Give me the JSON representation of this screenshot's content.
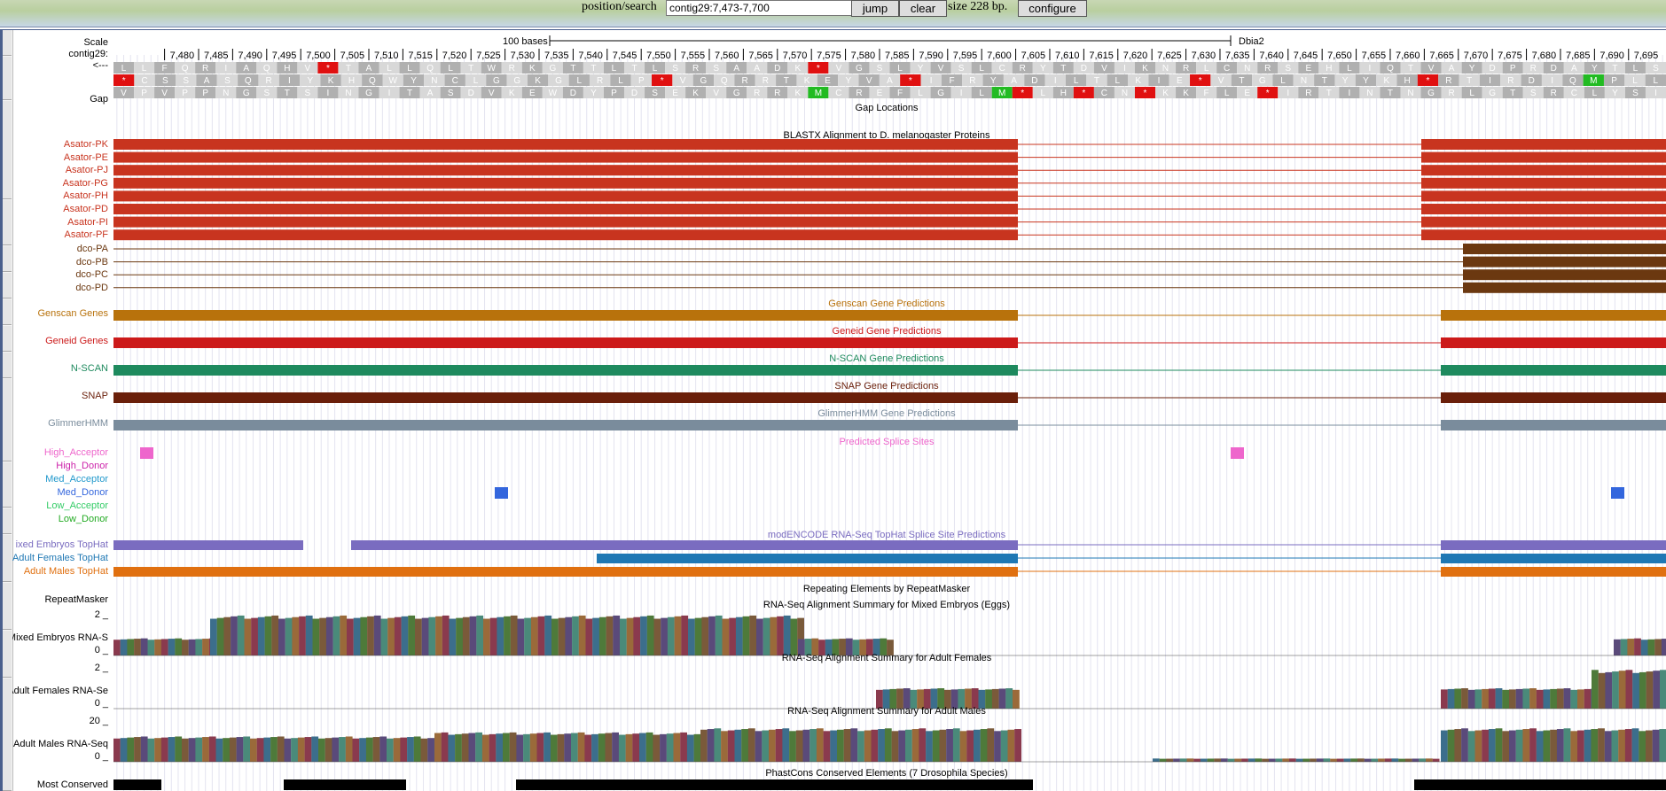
{
  "nav": {
    "position_label": "position/search",
    "position_value": "contig29:7,473-7,700",
    "jump_label": "jump",
    "clear_label": "clear",
    "size_text": "size 228 bp.",
    "configure_label": "configure"
  },
  "ruler": {
    "scale_label": "Scale",
    "chrom_label": "contig29:",
    "strand_label": "<---",
    "scale_bar_text": "100 bases",
    "assembly_label": "Dbia2",
    "range_start": 7473,
    "range_end": 7700,
    "ticks": [
      "7,480",
      "7,485",
      "7,490",
      "7,495",
      "7,500",
      "7,505",
      "7,510",
      "7,515",
      "7,520",
      "7,525",
      "7,530",
      "7,535",
      "7,540",
      "7,545",
      "7,550",
      "7,555",
      "7,560",
      "7,565",
      "7,570",
      "7,575",
      "7,580",
      "7,585",
      "7,590",
      "7,595",
      "7,600",
      "7,605",
      "7,610",
      "7,615",
      "7,620",
      "7,625",
      "7,630",
      "7,635",
      "7,640",
      "7,645",
      "7,650",
      "7,655",
      "7,660",
      "7,665",
      "7,670",
      "7,675",
      "7,680",
      "7,685",
      "7,690",
      "7,695"
    ]
  },
  "aa_frames": [
    "LLFQRIAQHV*TALLQLTWRKGTTLTLSRSAADK*VGSLYVSLCRYTDVIKNRLCNRSEHLIQTVAYDPRDAYTLS",
    "*CSSASQRIYKHQWYNCLGGKGLRLP*VGQRRTKEYVA*IFRYADILTLKIE*VTGLNTYYKH*RTIRDIQMPLL",
    "VPVPPNGSTSINGITASDVKEWDYPDSEKVGRRKMCREFLGILM*LH*CN*KKFLE*IRTINTNGRLGTSRCLYSI"
  ],
  "colors": {
    "asator": "#c8341f",
    "dco": "#6b3810",
    "genscan": "#b8720c",
    "geneid": "#cc1a1a",
    "nscan": "#1e8a5e",
    "snap": "#6a1f0a",
    "glimmer": "#7a8c9c",
    "mixed_tophat": "#7a6cc0",
    "females_tophat": "#1f78b4",
    "males_tophat": "#e07010",
    "stop_codon": "#e01010",
    "start_codon": "#22bb22"
  },
  "gap": {
    "label": "Gap",
    "title": "Gap Locations"
  },
  "blastx": {
    "title": "BLASTX Alignment to D. melanogaster Proteins",
    "items": [
      "Asator-PK",
      "Asator-PE",
      "Asator-PJ",
      "Asator-PG",
      "Asator-PH",
      "Asator-PD",
      "Asator-PI",
      "Asator-PF"
    ]
  },
  "dco": {
    "items": [
      "dco-PA",
      "dco-PB",
      "dco-PC",
      "dco-PD"
    ]
  },
  "predictions": [
    {
      "label": "Genscan Genes",
      "title": "Genscan Gene Predictions",
      "color": "#b8720c"
    },
    {
      "label": "Geneid Genes",
      "title": "Geneid Gene Predictions",
      "color": "#cc1a1a"
    },
    {
      "label": "N-SCAN",
      "title": "N-SCAN Gene Predictions",
      "color": "#1e8a5e"
    },
    {
      "label": "SNAP",
      "title": "SNAP Gene Predictions",
      "color": "#6a1f0a"
    },
    {
      "label": "GlimmerHMM",
      "title": "GlimmerHMM Gene Predictions",
      "color": "#7a8c9c"
    }
  ],
  "splice": {
    "title": "Predicted Splice Sites",
    "rows": [
      {
        "label": "High_Acceptor",
        "color": "#ee66cc"
      },
      {
        "label": "High_Donor",
        "color": "#cc22aa"
      },
      {
        "label": "Med_Acceptor",
        "color": "#2299cc"
      },
      {
        "label": "Med_Donor",
        "color": "#3366dd"
      },
      {
        "label": "Low_Acceptor",
        "color": "#33cc66"
      },
      {
        "label": "Low_Donor",
        "color": "#22aa22"
      }
    ]
  },
  "tophat": {
    "title": "modENCODE RNA-Seq TopHat Splice Site Predictions",
    "rows": [
      {
        "label": "ixed Embryos TopHat",
        "color": "#7a6cc0"
      },
      {
        "label": "Adult Females TopHat",
        "color": "#1f78b4"
      },
      {
        "label": "Adult Males TopHat",
        "color": "#e07010"
      }
    ]
  },
  "repeatmasker": {
    "label": "RepeatMasker",
    "title": "Repeating Elements by RepeatMasker"
  },
  "rnaseq": [
    {
      "label": "Mixed Embryos RNA-S",
      "title": "RNA-Seq Alignment Summary for Mixed Embryos (Eggs)",
      "max": "2 _",
      "min": "0 _"
    },
    {
      "label": "Adult Females RNA-Se",
      "title": "RNA-Seq Alignment Summary for Adult Females",
      "max": "2 _",
      "min": "0 _"
    },
    {
      "label": "Adult Males RNA-Seq",
      "title": "RNA-Seq Alignment Summary for Adult Males",
      "max": "20 _",
      "min": "0 _"
    }
  ],
  "phastcons": {
    "label": "Most Conserved",
    "title": "PhastCons Conserved Elements (7 Drosophila Species)"
  }
}
